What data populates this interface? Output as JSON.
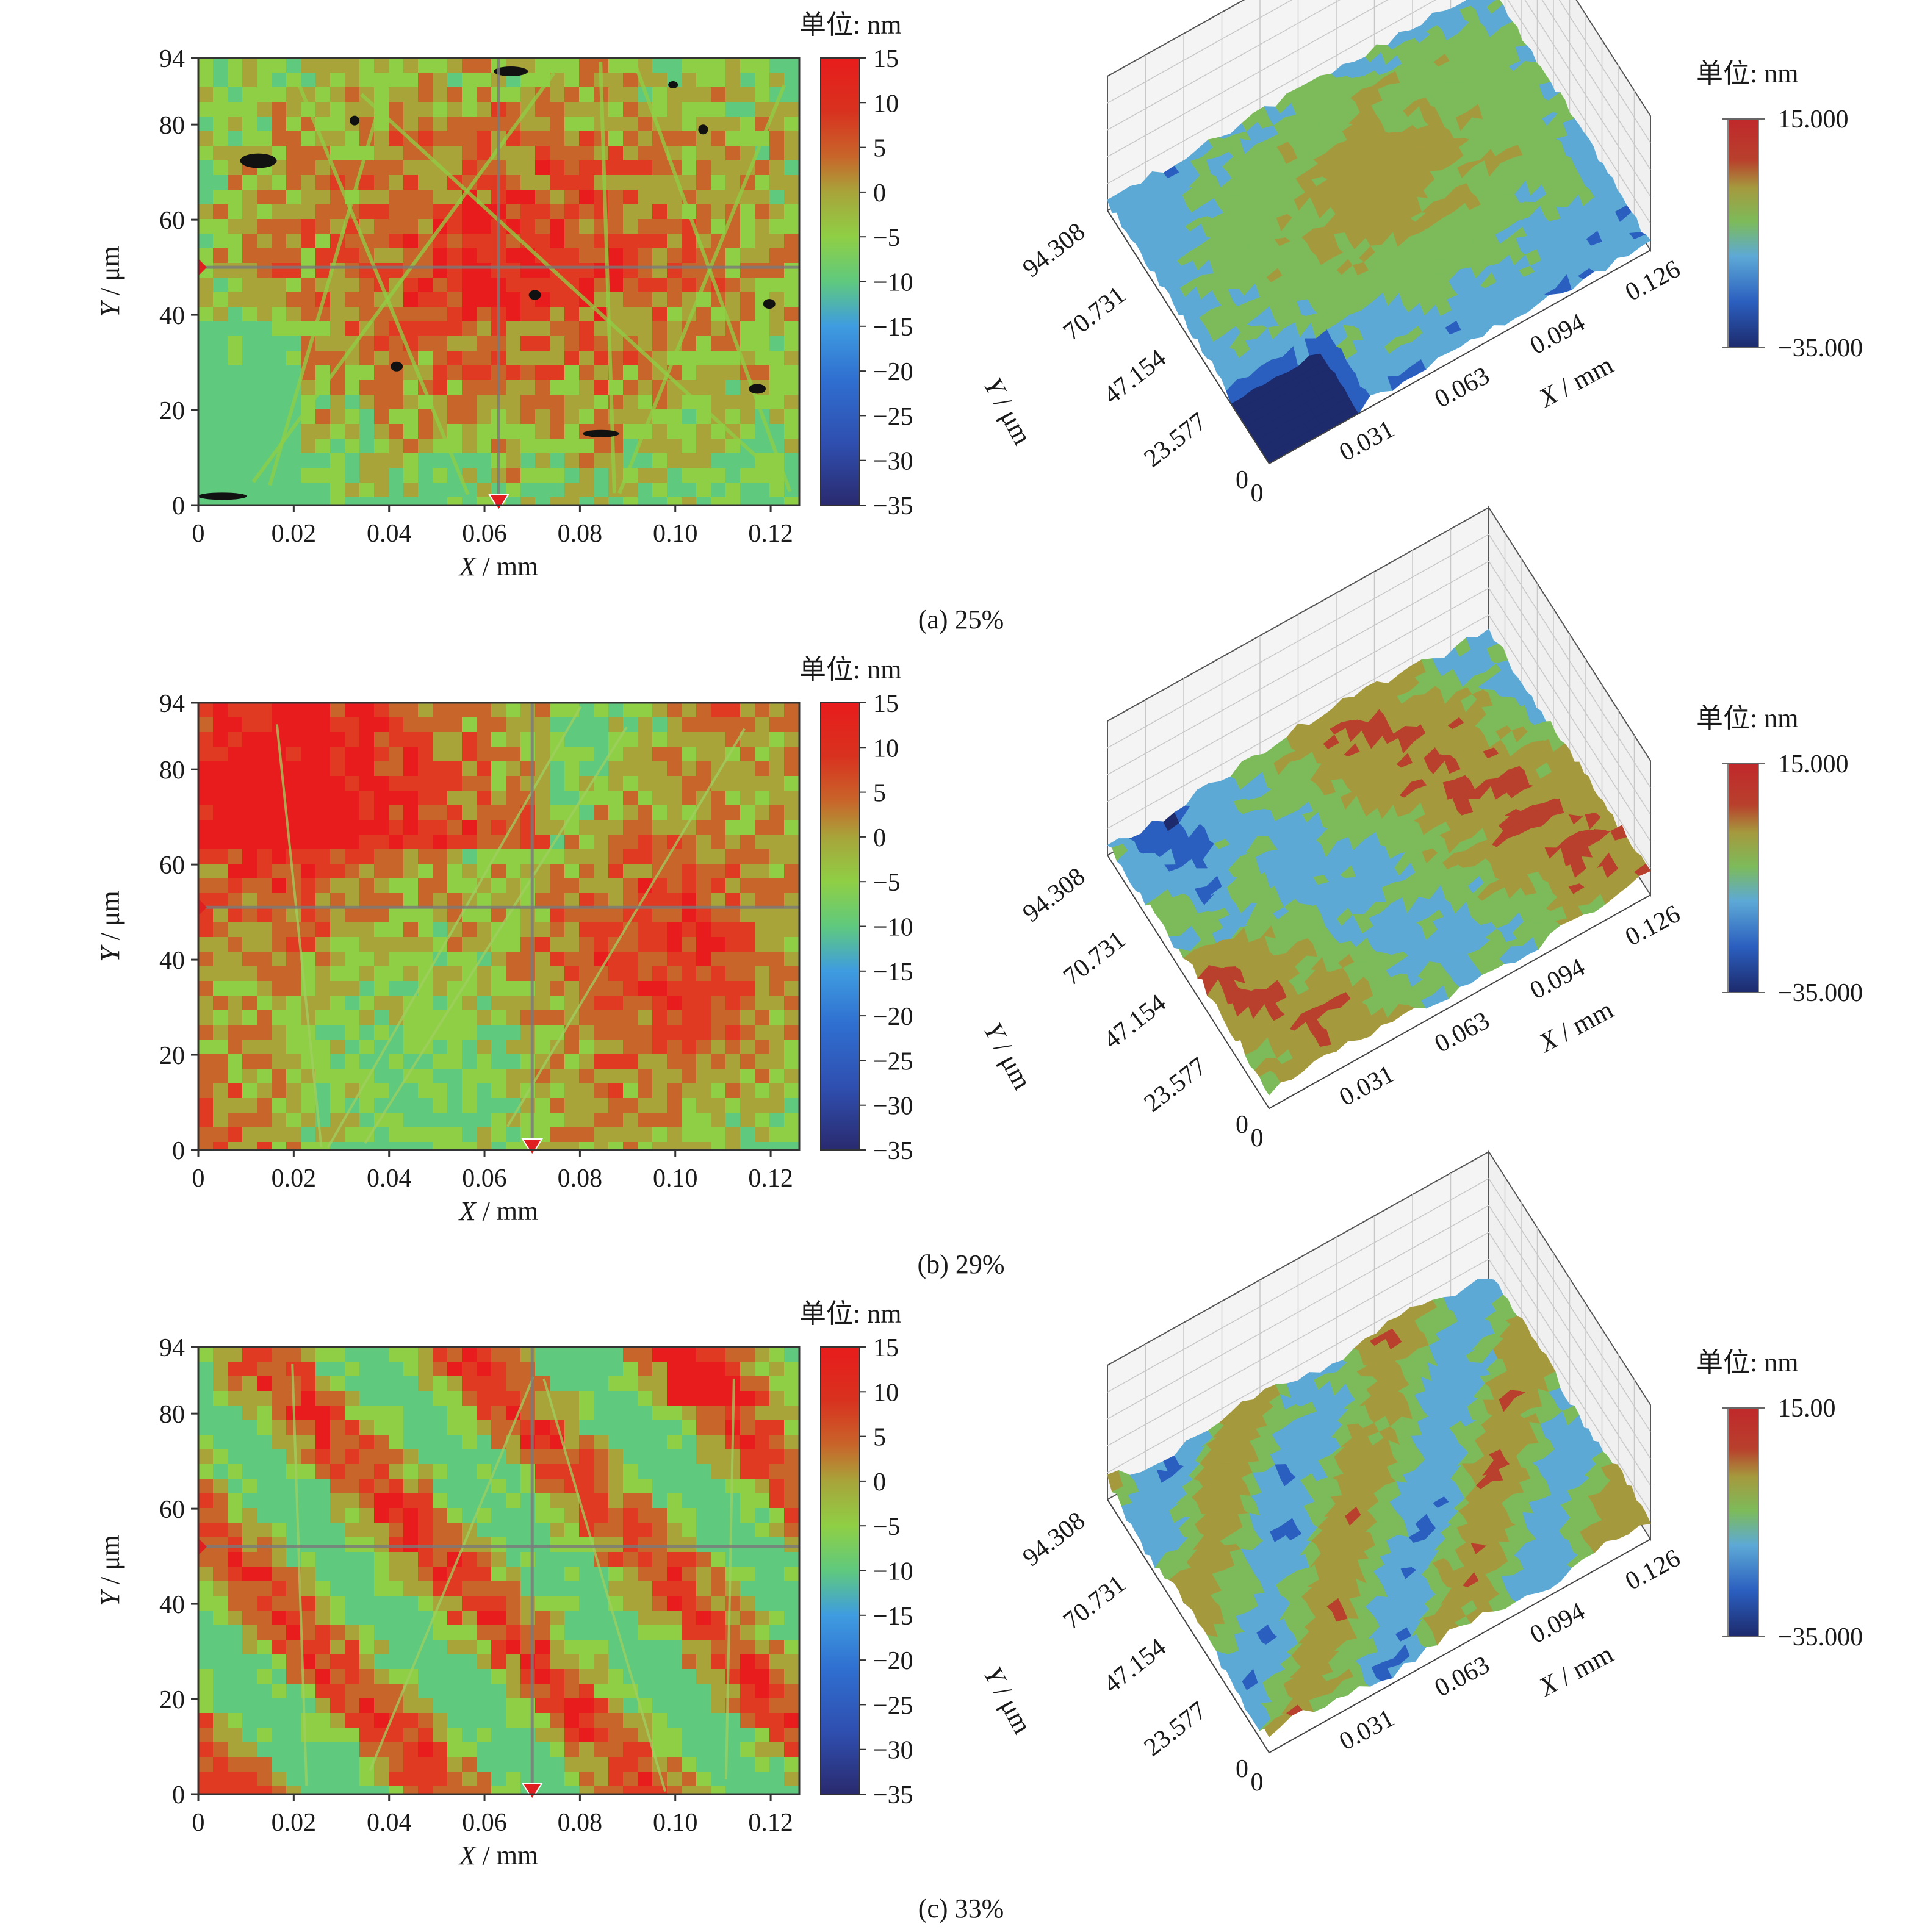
{
  "figure": {
    "panels": [
      {
        "caption": "(a) 25%",
        "map2d": {
          "xlabel_var": "X",
          "xlabel_unit": " / mm",
          "ylabel_var": "Y",
          "ylabel_unit": " / μm",
          "xticks": [
            "0",
            "0.02",
            "0.04",
            "0.06",
            "0.08",
            "0.10",
            "0.12"
          ],
          "yticks": [
            "0",
            "20",
            "40",
            "60",
            "80",
            "94"
          ],
          "unit_label": "单位: nm",
          "colorbar_ticks": [
            "15",
            "10",
            "5",
            "0",
            "−5",
            "−10",
            "−15",
            "−20",
            "−25",
            "−30",
            "−35"
          ]
        },
        "view3d": {
          "unit_label": "单位: nm",
          "cb_max": "15.000",
          "cb_min": "−35.000",
          "xticks": [
            "0",
            "0.031",
            "0.063",
            "0.094",
            "0.126"
          ],
          "yticks": [
            "0",
            "23.577",
            "47.154",
            "70.731",
            "94.308"
          ],
          "xlabel_var": "X",
          "xlabel_unit": " / mm",
          "ylabel_var": "Y",
          "ylabel_unit": " / μm"
        }
      },
      {
        "caption": "(b) 29%",
        "map2d": {
          "xlabel_var": "X",
          "xlabel_unit": " / mm",
          "ylabel_var": "Y",
          "ylabel_unit": " / μm",
          "xticks": [
            "0",
            "0.02",
            "0.04",
            "0.06",
            "0.08",
            "0.10",
            "0.12"
          ],
          "yticks": [
            "0",
            "20",
            "40",
            "60",
            "80",
            "94"
          ],
          "unit_label": "单位: nm",
          "colorbar_ticks": [
            "15",
            "10",
            "5",
            "0",
            "−5",
            "−10",
            "−15",
            "−20",
            "−25",
            "−30",
            "−35"
          ]
        },
        "view3d": {
          "unit_label": "单位: nm",
          "cb_max": "15.000",
          "cb_min": "−35.000",
          "xticks": [
            "0",
            "0.031",
            "0.063",
            "0.094",
            "0.126"
          ],
          "yticks": [
            "0",
            "23.577",
            "47.154",
            "70.731",
            "94.308"
          ],
          "xlabel_var": "X",
          "xlabel_unit": " / mm",
          "ylabel_var": "Y",
          "ylabel_unit": " / μm"
        }
      },
      {
        "caption": "(c) 33%",
        "map2d": {
          "xlabel_var": "X",
          "xlabel_unit": " / mm",
          "ylabel_var": "Y",
          "ylabel_unit": " / μm",
          "xticks": [
            "0",
            "0.02",
            "0.04",
            "0.06",
            "0.08",
            "0.10",
            "0.12"
          ],
          "yticks": [
            "0",
            "20",
            "40",
            "60",
            "80",
            "94"
          ],
          "unit_label": "单位: nm",
          "colorbar_ticks": [
            "15",
            "10",
            "5",
            "0",
            "−5",
            "−10",
            "−15",
            "−20",
            "−25",
            "−30",
            "−35"
          ]
        },
        "view3d": {
          "unit_label": "单位: nm",
          "cb_max": "15.00",
          "cb_min": "−35.000",
          "xticks": [
            "0",
            "0.031",
            "0.063",
            "0.094",
            "0.126"
          ],
          "yticks": [
            "0",
            "23.577",
            "47.154",
            "70.731",
            "94.308"
          ],
          "xlabel_var": "X",
          "xlabel_unit": " / mm",
          "ylabel_var": "Y",
          "ylabel_unit": " / μm"
        }
      }
    ]
  },
  "chart_data": [
    {
      "type": "heatmap",
      "panel": "a-2d",
      "title": "(a) 25%",
      "xlabel": "X / mm",
      "ylabel": "Y / μm",
      "xlim": [
        0,
        0.126
      ],
      "ylim": [
        0,
        94
      ],
      "zlim": [
        -35,
        15
      ],
      "z_unit": "nm",
      "colormap": [
        "#2a2a6e",
        "#2f4fb0",
        "#3f9ce0",
        "#5fc97e",
        "#8fcf45",
        "#a8a43a",
        "#c8652a",
        "#e03a22",
        "#e81c1c"
      ],
      "dominant_level": "high (red-orange) with green scratch lines and dark pits",
      "crosshair": {
        "x": 0.063,
        "y": 50
      }
    },
    {
      "type": "heatmap",
      "panel": "a-3d",
      "title": "(a) 25%",
      "xlabel": "X / mm",
      "ylabel": "Y / μm",
      "xlim": [
        0,
        0.126
      ],
      "ylim": [
        0,
        94.308
      ],
      "zlim": [
        -35,
        15
      ],
      "z_unit": "nm",
      "colormap": [
        "#1d2a6c",
        "#2b5fbf",
        "#5da9d6",
        "#7dbb5a",
        "#a5993e",
        "#b8402c",
        "#c0282b"
      ]
    },
    {
      "type": "heatmap",
      "panel": "b-2d",
      "title": "(b) 29%",
      "xlabel": "X / mm",
      "ylabel": "Y / μm",
      "xlim": [
        0,
        0.126
      ],
      "ylim": [
        0,
        94
      ],
      "zlim": [
        -35,
        15
      ],
      "z_unit": "nm",
      "colormap": [
        "#2a2a6e",
        "#2f4fb0",
        "#3f9ce0",
        "#5fc97e",
        "#8fcf45",
        "#a8a43a",
        "#c8652a",
        "#e03a22",
        "#e81c1c"
      ],
      "dominant_level": "mixed green and orange bands",
      "crosshair": {
        "x": 0.07,
        "y": 51
      }
    },
    {
      "type": "heatmap",
      "panel": "b-3d",
      "title": "(b) 29%",
      "xlabel": "X / mm",
      "ylabel": "Y / μm",
      "xlim": [
        0,
        0.126
      ],
      "ylim": [
        0,
        94.308
      ],
      "zlim": [
        -35,
        15
      ],
      "z_unit": "nm",
      "colormap": [
        "#1d2a6c",
        "#2b5fbf",
        "#5da9d6",
        "#7dbb5a",
        "#a5993e",
        "#b8402c",
        "#c0282b"
      ]
    },
    {
      "type": "heatmap",
      "panel": "c-2d",
      "title": "(c) 33%",
      "xlabel": "X / mm",
      "ylabel": "Y / μm",
      "xlim": [
        0,
        0.126
      ],
      "ylim": [
        0,
        94
      ],
      "zlim": [
        -35,
        15
      ],
      "z_unit": "nm",
      "colormap": [
        "#2a2a6e",
        "#2f4fb0",
        "#3f9ce0",
        "#5fc97e",
        "#8fcf45",
        "#a8a43a",
        "#c8652a",
        "#e03a22",
        "#e81c1c"
      ],
      "dominant_level": "diagonal green and orange streaks",
      "crosshair": {
        "x": 0.07,
        "y": 52
      }
    },
    {
      "type": "heatmap",
      "panel": "c-3d",
      "title": "(c) 33%",
      "xlabel": "X / mm",
      "ylabel": "Y / μm",
      "xlim": [
        0,
        0.126
      ],
      "ylim": [
        0,
        94.308
      ],
      "zlim": [
        -35,
        15
      ],
      "z_unit": "nm",
      "colormap": [
        "#1d2a6c",
        "#2b5fbf",
        "#5da9d6",
        "#7dbb5a",
        "#a5993e",
        "#b8402c",
        "#c0282b"
      ]
    }
  ]
}
